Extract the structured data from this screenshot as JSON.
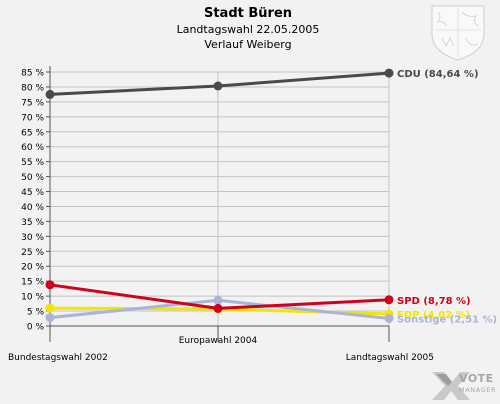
{
  "chart_data": {
    "type": "line",
    "title": "Stadt Büren",
    "subtitle": "Landtagswahl 22.05.2005",
    "subtitle2": "Verlauf Weiberg",
    "categories": [
      "Bundestagswahl 2002",
      "Europawahl 2004",
      "Landtagswahl 2005"
    ],
    "ylim": [
      0,
      85
    ],
    "yticks": [
      "0 %",
      "5 %",
      "10 %",
      "15 %",
      "20 %",
      "25 %",
      "30 %",
      "35 %",
      "40 %",
      "45 %",
      "50 %",
      "55 %",
      "60 %",
      "65 %",
      "70 %",
      "75 %",
      "80 %",
      "85 %"
    ],
    "grid": true,
    "series": [
      {
        "name": "CDU",
        "values": [
          77.5,
          80.3,
          84.64
        ],
        "color": "#4a4a4a",
        "label": "CDU (84,64 %)"
      },
      {
        "name": "SPD",
        "values": [
          13.8,
          5.9,
          8.78
        ],
        "color": "#d0021b",
        "label": "SPD (8,78 %)"
      },
      {
        "name": "FDP",
        "values": [
          6.0,
          5.7,
          4.02
        ],
        "color": "#f2e600",
        "label": "FDP (4,02 %)"
      },
      {
        "name": "Sonstige",
        "values": [
          2.8,
          8.6,
          2.51
        ],
        "color": "#aab4d8",
        "label": "Sonstige (2,51 %)"
      }
    ],
    "logo_text": [
      "VOTE",
      "MANAGER"
    ]
  }
}
